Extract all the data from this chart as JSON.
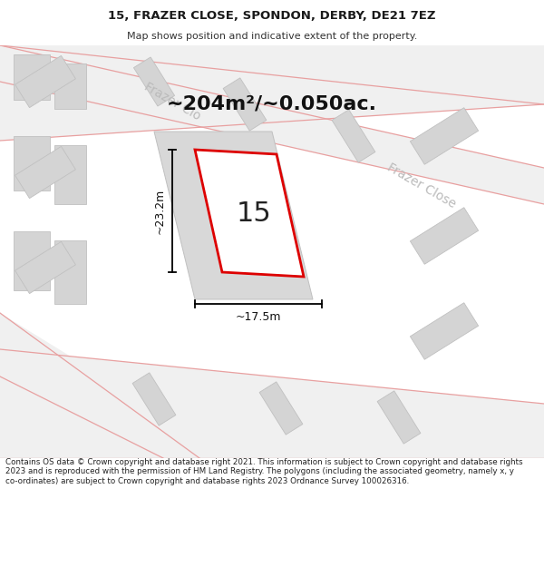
{
  "title_line1": "15, FRAZER CLOSE, SPONDON, DERBY, DE21 7EZ",
  "title_line2": "Map shows position and indicative extent of the property.",
  "area_text": "~204m²/~0.050ac.",
  "dim_width": "~17.5m",
  "dim_height": "~23.2m",
  "plot_number": "15",
  "street_label1": "Frazer Clo",
  "street_label2": "Frazer Close",
  "footer_text": "Contains OS data © Crown copyright and database right 2021. This information is subject to Crown copyright and database rights 2023 and is reproduced with the permission of HM Land Registry. The polygons (including the associated geometry, namely x, y co-ordinates) are subject to Crown copyright and database rights 2023 Ordnance Survey 100026316.",
  "map_bg": "#f7f7f7",
  "building_fill": "#d4d4d4",
  "building_edge": "#c0c0c0",
  "road_line_color": "#e8a0a0",
  "highlight_color": "#dd0000",
  "street_label_color": "#bbbbbb",
  "footer_fontsize": 6.3,
  "title1_fontsize": 9.5,
  "title2_fontsize": 8.0,
  "area_fontsize": 16,
  "plotnum_fontsize": 22,
  "dim_fontsize": 9
}
